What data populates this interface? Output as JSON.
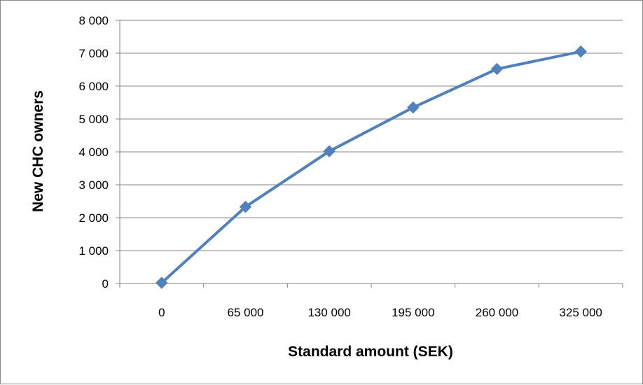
{
  "chart_data": {
    "type": "line",
    "title": "",
    "xlabel": "Standard amount (SEK)",
    "ylabel": "New CHC owners",
    "categories": [
      "0",
      "65 000",
      "130 000",
      "195 000",
      "260 000",
      "325 000"
    ],
    "x": [
      0,
      65000,
      130000,
      195000,
      260000,
      325000
    ],
    "series": [
      {
        "values": [
          20,
          2330,
          4020,
          5350,
          6520,
          7050
        ]
      }
    ],
    "ylim": [
      0,
      8000
    ],
    "yticks": [
      0,
      1000,
      2000,
      3000,
      4000,
      5000,
      6000,
      7000,
      8000
    ],
    "ytick_labels": [
      "0",
      "1 000",
      "2 000",
      "3 000",
      "4 000",
      "5 000",
      "6 000",
      "7 000",
      "8 000"
    ],
    "grid": true,
    "legend": "none",
    "marker": "diamond",
    "colors": {
      "series": "#4f81bd",
      "grid": "#868686",
      "axis": "#868686"
    }
  }
}
